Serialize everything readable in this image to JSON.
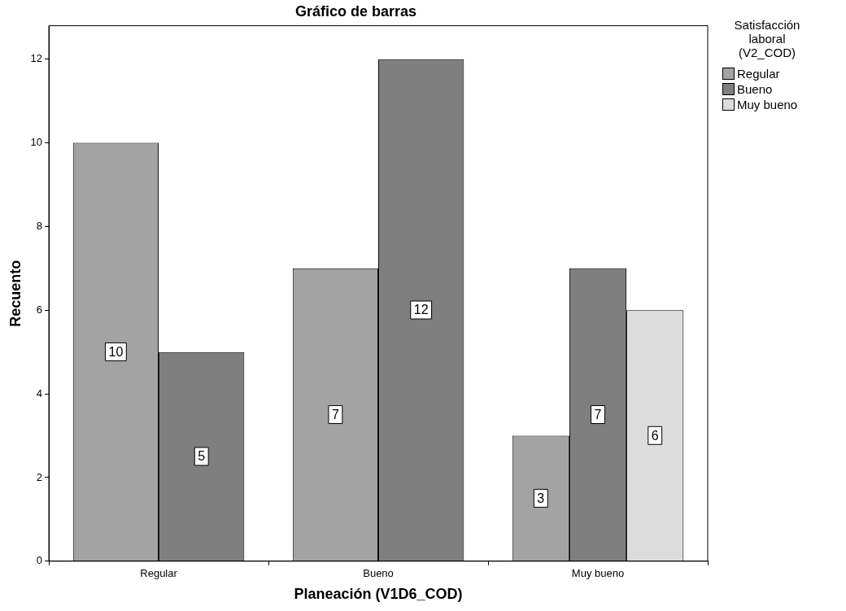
{
  "chart_data": {
    "type": "bar",
    "title": "Gráfico de barras",
    "xlabel": "Planeación (V1D6_COD)",
    "ylabel": "Recuento",
    "legend_title": "Satisfacción laboral (V2_COD)",
    "categories": [
      "Regular",
      "Bueno",
      "Muy bueno"
    ],
    "series": [
      {
        "name": "Regular",
        "color": "#a3a3a3",
        "values": [
          10,
          7,
          3
        ]
      },
      {
        "name": "Bueno",
        "color": "#7f7f7f",
        "values": [
          5,
          12,
          7
        ]
      },
      {
        "name": "Muy bueno",
        "color": "#dcdcdc",
        "values": [
          null,
          null,
          6
        ]
      }
    ],
    "ylim": [
      0,
      12.8
    ],
    "yticks": [
      0,
      2,
      4,
      6,
      8,
      10,
      12
    ],
    "grid": false,
    "legend": "right",
    "data_labels": true
  }
}
